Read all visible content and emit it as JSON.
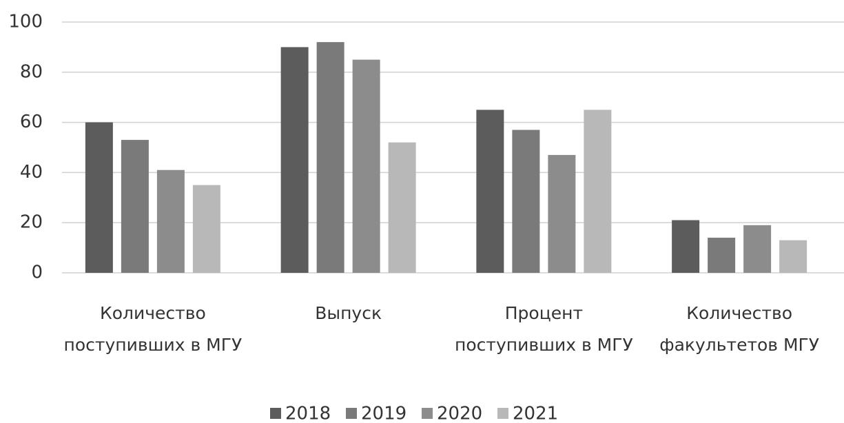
{
  "chart_data": {
    "type": "bar",
    "categories": [
      "Количество поступивших в МГУ",
      "Выпуск",
      "Процент поступивших в МГУ",
      "Количество факультетов МГУ"
    ],
    "series": [
      {
        "name": "2018",
        "color": "#5c5c5c",
        "values": [
          60,
          90,
          65,
          21
        ]
      },
      {
        "name": "2019",
        "color": "#7a7a7a",
        "values": [
          53,
          92,
          57,
          14
        ]
      },
      {
        "name": "2020",
        "color": "#8c8c8c",
        "values": [
          41,
          85,
          47,
          19
        ]
      },
      {
        "name": "2021",
        "color": "#b8b8b8",
        "values": [
          35,
          52,
          65,
          13
        ]
      }
    ],
    "ylim": [
      0,
      100
    ],
    "yticks": [
      0,
      20,
      40,
      60,
      80,
      100
    ],
    "grid": true,
    "legend": "bottom"
  }
}
